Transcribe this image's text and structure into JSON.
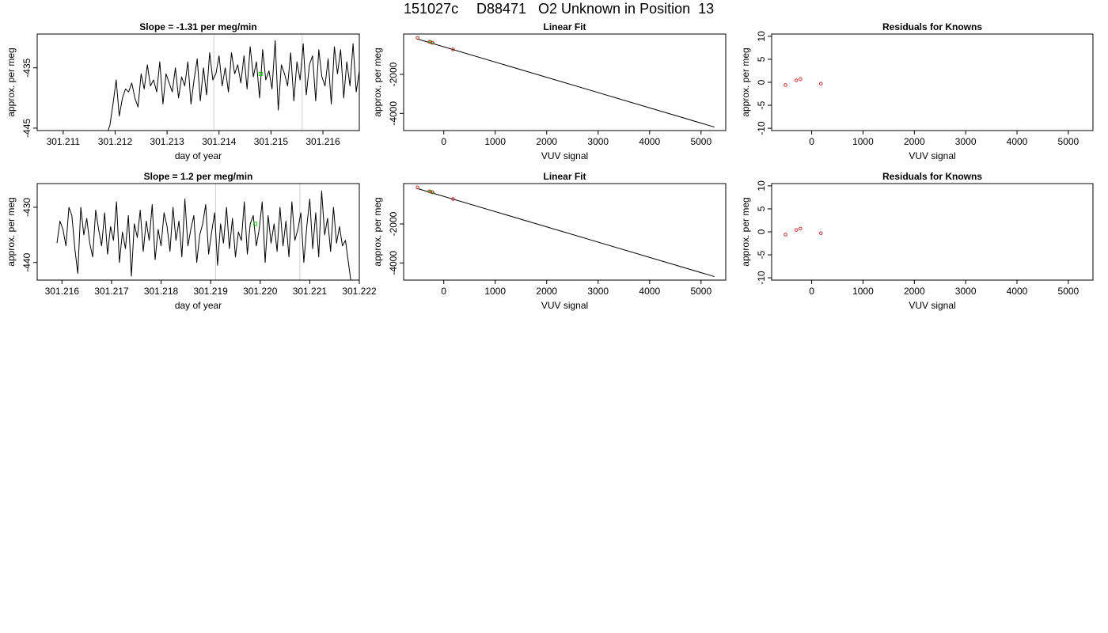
{
  "page": {
    "title_parts": [
      "151027c",
      "D88471",
      "O2 Unknown in Position  13"
    ]
  },
  "chart_data": [
    {
      "id": "p11",
      "type": "line",
      "title": "Slope =  -1.31  per meg/min",
      "xlabel": "day of year",
      "ylabel": "approx. per meg",
      "xlim": [
        301.2105,
        301.2167
      ],
      "ylim": [
        -445.4,
        -429.4
      ],
      "xticks": [
        "301.211",
        "301.212",
        "301.213",
        "301.214",
        "301.215",
        "301.216"
      ],
      "yticks": [
        "-445",
        "-435"
      ],
      "yticks_values": [
        -445,
        -435
      ],
      "xticks_values": [
        301.211,
        301.212,
        301.213,
        301.214,
        301.215,
        301.216
      ],
      "vlines": [
        301.2139,
        301.2156
      ],
      "line_color": "#000000",
      "vline_color": "#d0d0d0",
      "marker": {
        "x": 301.2148,
        "y": -436.0,
        "color": "#00cc00"
      },
      "x": [
        301.21184,
        301.2119,
        301.21196,
        301.21202,
        301.21208,
        301.21214,
        301.2122,
        301.21226,
        301.21232,
        301.21238,
        301.21244,
        301.2125,
        301.21256,
        301.21262,
        301.21268,
        301.21274,
        301.2128,
        301.21286,
        301.21292,
        301.21298,
        301.21304,
        301.2131,
        301.21316,
        301.21322,
        301.21328,
        301.21334,
        301.2134,
        301.21346,
        301.21352,
        301.21358,
        301.21364,
        301.2137,
        301.21376,
        301.21382,
        301.21388,
        301.21394,
        301.214,
        301.21406,
        301.21412,
        301.21418,
        301.21424,
        301.2143,
        301.21436,
        301.21442,
        301.21448,
        301.21454,
        301.2146,
        301.21466,
        301.21472,
        301.21478,
        301.21484,
        301.2149,
        301.21496,
        301.21502,
        301.21508,
        301.21514,
        301.2152,
        301.21526,
        301.21532,
        301.21538,
        301.21544,
        301.2155,
        301.21556,
        301.21562,
        301.21568,
        301.21574,
        301.2158,
        301.21586,
        301.21592,
        301.21598,
        301.21604,
        301.2161,
        301.21616,
        301.21622,
        301.21628,
        301.21634,
        301.2164,
        301.21646,
        301.21652,
        301.21658,
        301.21664,
        301.2167
      ],
      "y": [
        -446,
        -444.5,
        -441,
        -437,
        -443,
        -440,
        -438.5,
        -439,
        -437.5,
        -440,
        -441.5,
        -436,
        -438.5,
        -434.5,
        -438,
        -437,
        -439,
        -434,
        -441,
        -436,
        -437.5,
        -439,
        -435,
        -440,
        -436.5,
        -438,
        -434,
        -441,
        -437,
        -433.5,
        -440.5,
        -435,
        -439.5,
        -432.5,
        -437,
        -436,
        -433,
        -438,
        -435,
        -439,
        -432.5,
        -436,
        -434.5,
        -437.5,
        -433,
        -438.5,
        -431.5,
        -436.5,
        -434,
        -440,
        -432,
        -437,
        -435.5,
        -438.5,
        -430.5,
        -442,
        -434.5,
        -436,
        -438,
        -432.5,
        -440.5,
        -434,
        -437,
        -431,
        -439.5,
        -434.5,
        -433,
        -440.5,
        -432,
        -436.5,
        -438,
        -433.5,
        -441,
        -431.5,
        -436,
        -432,
        -440,
        -434,
        -438,
        -431,
        -439,
        -435.5
      ]
    },
    {
      "id": "p12",
      "type": "scatter",
      "title": "Linear Fit",
      "xlabel": "VUV signal",
      "ylabel": "approx. per meg",
      "xlim": [
        -780,
        5480
      ],
      "ylim": [
        -4880,
        70
      ],
      "xticks": [
        "0",
        "1000",
        "2000",
        "3000",
        "4000",
        "5000"
      ],
      "xticks_values": [
        0,
        1000,
        2000,
        3000,
        4000,
        5000
      ],
      "yticks": [
        "-2000",
        "-4000"
      ],
      "yticks_values": [
        -2000,
        -4000
      ],
      "fit_line": {
        "x": [
          -520,
          5260
        ],
        "y": [
          -180,
          -4700
        ]
      },
      "knowns": {
        "x": [
          -510,
          -280,
          -220,
          180
        ],
        "y": [
          -130,
          -330,
          -380,
          -720
        ],
        "color": "#cc3333"
      },
      "unknowns": {
        "x": [
          -260,
          -230
        ],
        "y": [
          -340,
          -370
        ],
        "color": "#00cc00"
      }
    },
    {
      "id": "p13",
      "type": "scatter",
      "title": "Residuals for Knowns",
      "xlabel": "VUV signal",
      "ylabel": "approx. per meg",
      "xlim": [
        -780,
        5480
      ],
      "ylim": [
        -10.5,
        10.5
      ],
      "xticks": [
        "0",
        "1000",
        "2000",
        "3000",
        "4000",
        "5000"
      ],
      "xticks_values": [
        0,
        1000,
        2000,
        3000,
        4000,
        5000
      ],
      "yticks": [
        "-10",
        "-5",
        "0",
        "5",
        "10"
      ],
      "yticks_values": [
        -10,
        -5,
        0,
        5,
        10
      ],
      "knowns": {
        "x": [
          -510,
          -300,
          -220,
          180
        ],
        "y": [
          -0.6,
          0.4,
          0.7,
          -0.3
        ],
        "color": "#cc3333"
      }
    },
    {
      "id": "p21",
      "type": "line",
      "title": "Slope =  1.2  per meg/min",
      "xlabel": "day of year",
      "ylabel": "approx. per meg",
      "xlim": [
        301.2155,
        301.222
      ],
      "ylim": [
        -443.2,
        -425.7
      ],
      "xticks": [
        "301.216",
        "301.217",
        "301.218",
        "301.219",
        "301.220",
        "301.221",
        "301.222"
      ],
      "xticks_values": [
        301.216,
        301.217,
        301.218,
        301.219,
        301.22,
        301.221,
        301.222
      ],
      "yticks": [
        "-430",
        "-440"
      ],
      "yticks_values": [
        -430,
        -440
      ],
      "vlines": [
        301.2191,
        301.2208
      ],
      "line_color": "#000000",
      "vline_color": "#d0d0d0",
      "marker": {
        "x": 301.2199,
        "y": -433.0,
        "color": "#00cc00"
      },
      "x": [
        301.2159,
        301.21596,
        301.21602,
        301.21608,
        301.21614,
        301.2162,
        301.21626,
        301.21632,
        301.21638,
        301.21644,
        301.2165,
        301.21656,
        301.21662,
        301.21668,
        301.21674,
        301.2168,
        301.21686,
        301.21692,
        301.21698,
        301.21704,
        301.2171,
        301.21716,
        301.21722,
        301.21728,
        301.21734,
        301.2174,
        301.21746,
        301.21752,
        301.21758,
        301.21764,
        301.2177,
        301.21776,
        301.21782,
        301.21788,
        301.21794,
        301.218,
        301.21806,
        301.21812,
        301.21818,
        301.21824,
        301.2183,
        301.21836,
        301.21842,
        301.21848,
        301.21854,
        301.2186,
        301.21866,
        301.21872,
        301.21878,
        301.21884,
        301.2189,
        301.21896,
        301.21902,
        301.21908,
        301.21914,
        301.2192,
        301.21926,
        301.21932,
        301.21938,
        301.21944,
        301.2195,
        301.21956,
        301.21962,
        301.21968,
        301.21974,
        301.2198,
        301.21986,
        301.21992,
        301.21998,
        301.22004,
        301.2201,
        301.22016,
        301.22022,
        301.22028,
        301.22034,
        301.2204,
        301.22046,
        301.22052,
        301.22058,
        301.22064,
        301.2207,
        301.22076,
        301.22082,
        301.22088,
        301.22094,
        301.221,
        301.22106,
        301.22112,
        301.22118,
        301.22124,
        301.2213,
        301.22136,
        301.22142,
        301.22148,
        301.22154,
        301.2216,
        301.22166,
        301.22172,
        301.22178,
        301.22184
      ],
      "y": [
        -436.5,
        -432.5,
        -434,
        -437,
        -430,
        -431.5,
        -437.5,
        -442,
        -430,
        -435,
        -432,
        -436.5,
        -439,
        -430.5,
        -434,
        -437,
        -431,
        -438.5,
        -433.5,
        -436,
        -429,
        -440,
        -434.5,
        -437.5,
        -431.5,
        -442.5,
        -433,
        -435.5,
        -430.5,
        -438,
        -432.5,
        -436,
        -429.5,
        -439.5,
        -434,
        -437,
        -431,
        -433.5,
        -438,
        -430,
        -436,
        -432.5,
        -439,
        -428.5,
        -437,
        -434,
        -431.5,
        -440,
        -435,
        -433,
        -429.5,
        -438.5,
        -434.5,
        -431,
        -440.5,
        -433,
        -436.5,
        -430,
        -437.5,
        -432,
        -439,
        -434.5,
        -436,
        -429,
        -438.5,
        -433,
        -431.5,
        -437,
        -434,
        -429,
        -440,
        -431.5,
        -436.5,
        -433,
        -438,
        -430,
        -437,
        -432.5,
        -439,
        -429,
        -436,
        -434,
        -431,
        -440,
        -433.5,
        -428.5,
        -437.5,
        -431,
        -439,
        -427,
        -435,
        -432,
        -438,
        -430,
        -436.5,
        -433.5,
        -437,
        -436,
        -440,
        -444
      ]
    },
    {
      "id": "p22",
      "type": "scatter",
      "title": "Linear Fit",
      "xlabel": "VUV signal",
      "ylabel": "approx. per meg",
      "xlim": [
        -780,
        5480
      ],
      "ylim": [
        -4880,
        70
      ],
      "xticks": [
        "0",
        "1000",
        "2000",
        "3000",
        "4000",
        "5000"
      ],
      "xticks_values": [
        0,
        1000,
        2000,
        3000,
        4000,
        5000
      ],
      "yticks": [
        "-2000",
        "-4000"
      ],
      "yticks_values": [
        -2000,
        -4000
      ],
      "fit_line": {
        "x": [
          -520,
          5260
        ],
        "y": [
          -180,
          -4700
        ]
      },
      "knowns": {
        "x": [
          -510,
          -280,
          -220,
          180
        ],
        "y": [
          -130,
          -330,
          -380,
          -720
        ],
        "color": "#cc3333"
      },
      "unknowns": {
        "x": [
          -260,
          -230
        ],
        "y": [
          -340,
          -370
        ],
        "color": "#00cc00"
      }
    },
    {
      "id": "p23",
      "type": "scatter",
      "title": "Residuals for Knowns",
      "xlabel": "VUV signal",
      "ylabel": "approx. per meg",
      "xlim": [
        -780,
        5480
      ],
      "ylim": [
        -10.5,
        10.5
      ],
      "xticks": [
        "0",
        "1000",
        "2000",
        "3000",
        "4000",
        "5000"
      ],
      "xticks_values": [
        0,
        1000,
        2000,
        3000,
        4000,
        5000
      ],
      "yticks": [
        "-10",
        "-5",
        "0",
        "5",
        "10"
      ],
      "yticks_values": [
        -10,
        -5,
        0,
        5,
        10
      ],
      "knowns": {
        "x": [
          -510,
          -300,
          -220,
          180
        ],
        "y": [
          -0.6,
          0.4,
          0.7,
          -0.3
        ],
        "color": "#cc3333"
      }
    }
  ]
}
